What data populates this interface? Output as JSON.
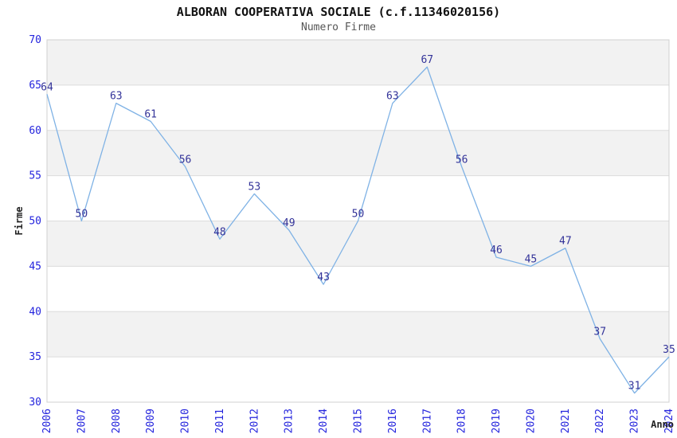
{
  "header": {
    "title": "ALBORAN COOPERATIVA SOCIALE (c.f.11346020156)",
    "subtitle": "Numero Firme"
  },
  "chart_data": {
    "type": "line",
    "title": "ALBORAN COOPERATIVA SOCIALE (c.f.11346020156)",
    "subtitle": "Numero Firme",
    "xlabel": "Anno",
    "ylabel": "Firme",
    "x": [
      "2006",
      "2007",
      "2008",
      "2009",
      "2010",
      "2011",
      "2012",
      "2013",
      "2014",
      "2015",
      "2016",
      "2017",
      "2018",
      "2019",
      "2020",
      "2021",
      "2022",
      "2023",
      "2024"
    ],
    "values": [
      64,
      50,
      63,
      61,
      56,
      48,
      53,
      49,
      43,
      50,
      63,
      67,
      56,
      46,
      45,
      47,
      37,
      31,
      35
    ],
    "ylim": [
      30,
      70
    ],
    "ytick_step": 5,
    "grid": "horizontal-only",
    "legend": "none",
    "point_markers": false,
    "band_fill_ranges": [
      [
        35,
        40
      ],
      [
        45,
        50
      ],
      [
        55,
        60
      ],
      [
        65,
        70
      ]
    ],
    "colors": {
      "line": "#7fb2e5",
      "tick_label": "#2424dd",
      "point_label": "#333399",
      "band": "#f2f2f2",
      "grid": "#dcdcdc",
      "border": "#d0d0d0",
      "axis_label": "#222222"
    }
  }
}
